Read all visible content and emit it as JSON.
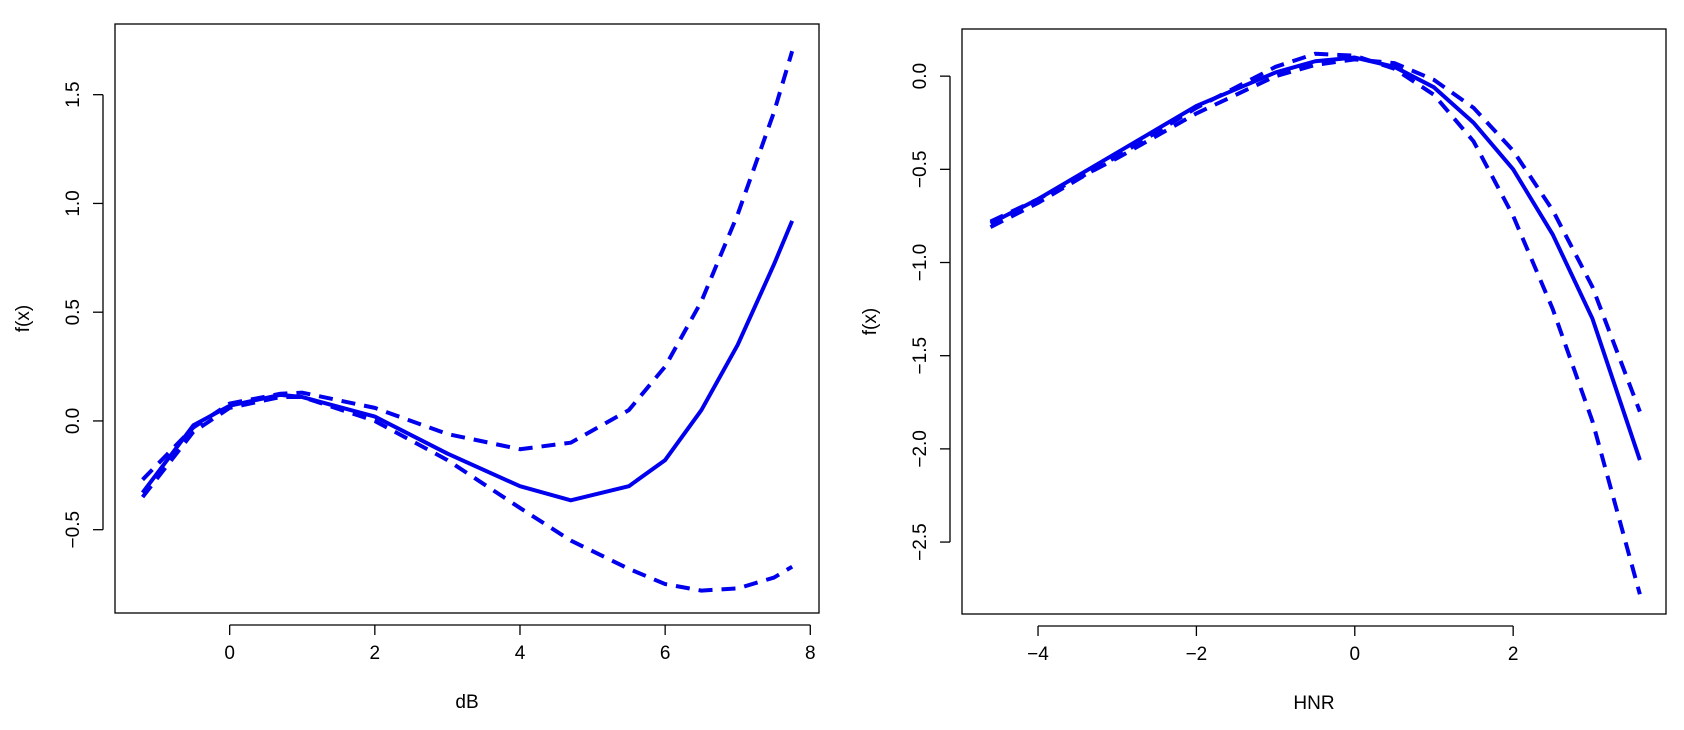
{
  "chart_data": [
    {
      "type": "line",
      "x_label": "dB",
      "y_label": "f(x)",
      "xlim": [
        -1.58,
        8.12
      ],
      "ylim": [
        -0.883,
        1.825
      ],
      "xticks": [
        0,
        2,
        4,
        6,
        8
      ],
      "yticks": [
        {
          "value": -0.5,
          "label": "−0.5"
        },
        {
          "value": 0,
          "label": "0.0"
        },
        0.5,
        {
          "value": 1,
          "label": "1.0"
        },
        1.5
      ],
      "x": [
        -1.2,
        -0.5,
        0,
        0.7,
        1,
        2,
        3,
        4,
        4.7,
        5.5,
        6,
        6.5,
        7,
        7.5,
        7.75
      ],
      "series": [
        {
          "color": "#0000ee",
          "dashed": false,
          "values": [
            -0.33,
            -0.02,
            0.07,
            0.12,
            0.11,
            0.02,
            -0.15,
            -0.3,
            -0.365,
            -0.3,
            -0.18,
            0.05,
            0.35,
            0.72,
            0.92
          ]
        },
        {
          "color": "#0000ee",
          "dashed": true,
          "values": [
            -0.27,
            -0.03,
            0.08,
            0.125,
            0.13,
            0.06,
            -0.06,
            -0.13,
            -0.1,
            0.05,
            0.25,
            0.55,
            0.95,
            1.42,
            1.7
          ]
        },
        {
          "color": "#0000ee",
          "dashed": true,
          "values": [
            -0.35,
            -0.05,
            0.06,
            0.11,
            0.11,
            0.0,
            -0.18,
            -0.4,
            -0.55,
            -0.68,
            -0.75,
            -0.78,
            -0.77,
            -0.72,
            -0.67
          ]
        }
      ]
    },
    {
      "type": "line",
      "x_label": "HNR",
      "y_label": "f(x)",
      "xlim": [
        -4.96,
        3.93
      ],
      "ylim": [
        -2.886,
        0.253
      ],
      "xticks": [
        {
          "value": -4,
          "label": "−4"
        },
        {
          "value": -2,
          "label": "−2"
        },
        0,
        2
      ],
      "yticks": [
        {
          "value": -2.5,
          "label": "−2.5"
        },
        {
          "value": -2,
          "label": "−2.0"
        },
        {
          "value": -1.5,
          "label": "−1.5"
        },
        {
          "value": -1,
          "label": "−1.0"
        },
        {
          "value": -0.5,
          "label": "−0.5"
        },
        {
          "value": 0,
          "label": "0.0"
        }
      ],
      "x": [
        -4.6,
        -4,
        -3,
        -2,
        -1,
        -0.5,
        0,
        0.5,
        1,
        1.5,
        2,
        2.5,
        3,
        3.6
      ],
      "series": [
        {
          "color": "#0000ee",
          "dashed": false,
          "values": [
            -0.79,
            -0.66,
            -0.41,
            -0.16,
            0.02,
            0.08,
            0.1,
            0.05,
            -0.06,
            -0.25,
            -0.5,
            -0.85,
            -1.3,
            -2.06
          ]
        },
        {
          "color": "#0000ee",
          "dashed": true,
          "values": [
            -0.78,
            -0.66,
            -0.44,
            -0.2,
            0.0,
            0.06,
            0.09,
            0.07,
            -0.02,
            -0.17,
            -0.4,
            -0.72,
            -1.13,
            -1.8
          ]
        },
        {
          "color": "#0000ee",
          "dashed": true,
          "values": [
            -0.81,
            -0.68,
            -0.43,
            -0.17,
            0.05,
            0.12,
            0.11,
            0.04,
            -0.1,
            -0.35,
            -0.75,
            -1.25,
            -1.85,
            -2.78
          ]
        }
      ]
    }
  ]
}
